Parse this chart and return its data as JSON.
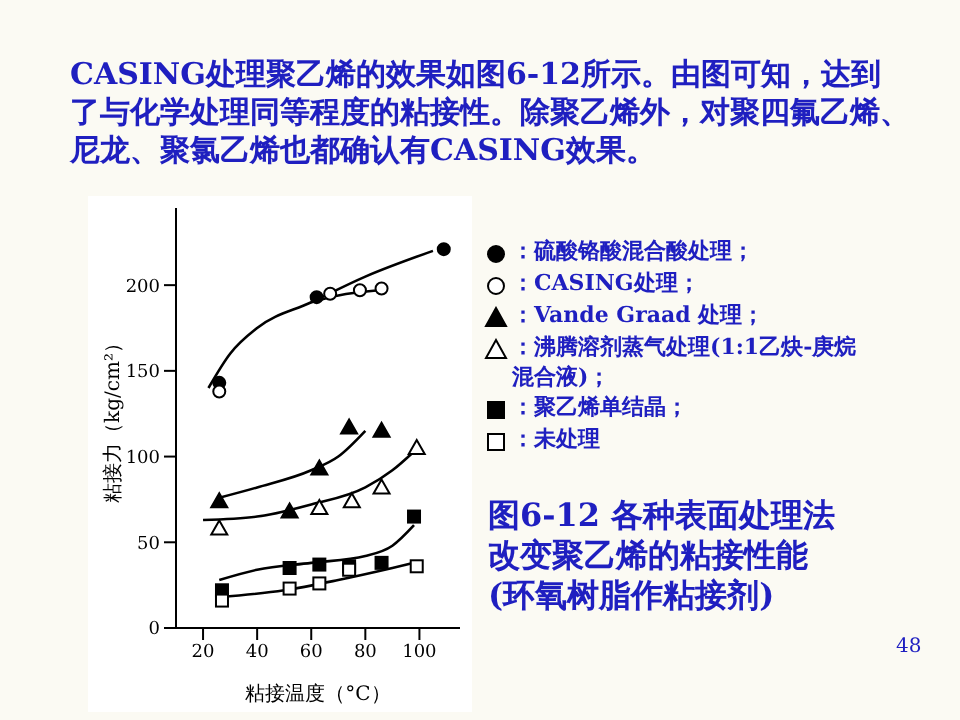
{
  "chart_data": {
    "type": "scatter",
    "title": "CASING处理聚乙烯的效果如图6-12所示。由图可知，达到了与化学处理同等程度的粘接性。除聚乙烯外，对聚四氟乙烯、尼龙、聚氯乙烯也都确认有CASING效果。",
    "xlabel": "粘接温度（°C）",
    "ylabel": "粘接力（kg/cm²）",
    "xlim": [
      10,
      115
    ],
    "ylim": [
      0,
      245
    ],
    "xticks": [
      20,
      40,
      60,
      80,
      100
    ],
    "yticks": [
      0,
      50,
      100,
      150,
      200
    ],
    "grid": false,
    "legend": "right",
    "line_style": "solid",
    "annotations": [
      "图6-12 各种表面处理法改变聚乙烯的粘接性能(环氧树脂作粘接剂)",
      "48"
    ],
    "series": [
      {
        "name": "：硫酸铬酸混合酸处理；",
        "color": "#000000",
        "marker": "circle",
        "x": [
          26,
          62,
          109
        ],
        "values": [
          143,
          193,
          221
        ]
      },
      {
        "name": "：CASING处理；",
        "color": "#ffffff",
        "marker": "circle",
        "x": [
          26,
          67,
          78,
          86
        ],
        "values": [
          138,
          195,
          197,
          198
        ]
      },
      {
        "name": "：Vande Graad 处理；",
        "color": "#000000",
        "marker": "triangle",
        "x": [
          26,
          52,
          63,
          74,
          86
        ],
        "values": [
          74,
          68,
          93,
          117,
          115
        ]
      },
      {
        "name": "：沸腾溶剂蒸气处理(1:1乙炔-庚烷混合液)；",
        "color": "#ffffff",
        "marker": "triangle",
        "x": [
          26,
          63,
          75,
          86,
          99
        ],
        "values": [
          58,
          70,
          74,
          82,
          105
        ]
      },
      {
        "name": "：聚乙烯单结晶；",
        "color": "#000000",
        "marker": "square",
        "x": [
          27,
          52,
          63,
          74,
          86,
          98
        ],
        "values": [
          22,
          35,
          37,
          36,
          38,
          65
        ]
      },
      {
        "name": "：未处理",
        "color": "#ffffff",
        "marker": "square",
        "x": [
          27,
          52,
          63,
          74,
          99
        ],
        "values": [
          16,
          23,
          26,
          34,
          36
        ]
      },
      {
        "type": "line",
        "color": "#000000",
        "marker": "none",
        "x": [
          22,
          30,
          40,
          60,
          80,
          105
        ],
        "values": [
          140,
          160,
          175,
          190,
          205,
          220
        ]
      },
      {
        "type": "line",
        "color": "#000000",
        "marker": "none",
        "x": [
          60,
          70,
          85
        ],
        "values": [
          190,
          194,
          197
        ]
      },
      {
        "type": "line",
        "color": "#000000",
        "marker": "none",
        "x": [
          26,
          40,
          60,
          70,
          80
        ],
        "values": [
          76,
          82,
          92,
          100,
          115
        ]
      },
      {
        "type": "line",
        "color": "#000000",
        "marker": "none",
        "x": [
          20,
          40,
          60,
          80,
          90,
          98
        ],
        "values": [
          63,
          65,
          72,
          82,
          92,
          103
        ]
      },
      {
        "type": "line",
        "color": "#000000",
        "marker": "none",
        "x": [
          26,
          40,
          60,
          80,
          90,
          98
        ],
        "values": [
          28,
          34,
          38,
          42,
          48,
          60
        ]
      },
      {
        "type": "line",
        "color": "#000000",
        "marker": "none",
        "x": [
          26,
          50,
          70,
          90,
          98
        ],
        "values": [
          18,
          22,
          28,
          35,
          38
        ]
      }
    ]
  }
}
